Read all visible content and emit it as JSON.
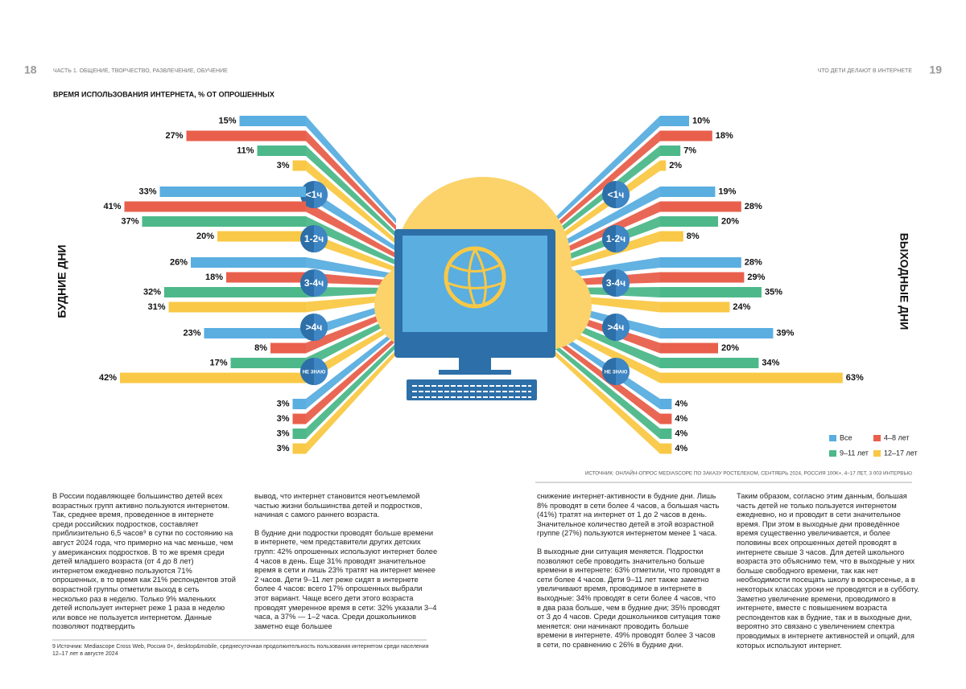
{
  "header": {
    "left_page": "18",
    "left_section": "ЧАСТЬ 1. ОБЩЕНИЕ, ТВОРЧЕСТВО, РАЗВЛЕЧЕНИЕ, ОБУЧЕНИЕ",
    "right_section": "ЧТО ДЕТИ ДЕЛАЮТ В ИНТЕРНЕТЕ",
    "right_page": "19"
  },
  "chart_data": {
    "type": "bar",
    "title": "ВРЕМЯ ИСПОЛЬЗОВАНИЯ ИНТЕРНЕТА, % ОТ ОПРОШЕННЫХ",
    "categories": [
      "<1ч",
      "1-2ч",
      "3-4ч",
      ">4ч",
      "НЕ ЗНАЮ"
    ],
    "series": [
      {
        "name": "Все",
        "color": "#5aaee0"
      },
      {
        "name": "4–8 лет",
        "color": "#e8604c"
      },
      {
        "name": "9–11 лет",
        "color": "#4db88a"
      },
      {
        "name": "12–17 лет",
        "color": "#f9c846"
      }
    ],
    "panels": [
      {
        "title": "БУДНИЕ ДНИ",
        "series": [
          {
            "values": [
              15,
              33,
              26,
              23,
              3
            ],
            "value_labels": [
              "15%",
              "33%",
              "26%",
              "23%",
              "3%"
            ]
          },
          {
            "values": [
              27,
              41,
              18,
              8,
              3
            ],
            "value_labels": [
              "27%",
              "41%",
              "18%",
              "8%",
              "3%"
            ]
          },
          {
            "values": [
              11,
              37,
              32,
              17,
              3
            ],
            "value_labels": [
              "11%",
              "37%",
              "32%",
              "17%",
              "3%"
            ]
          },
          {
            "values": [
              3,
              20,
              31,
              42,
              3
            ],
            "value_labels": [
              "3%",
              "20%",
              "31%",
              "42%",
              "3%"
            ]
          }
        ]
      },
      {
        "title": "ВЫХОДНЫЕ ДНИ",
        "series": [
          {
            "values": [
              10,
              19,
              28,
              39,
              4
            ],
            "value_labels": [
              "10%",
              "19%",
              "28%",
              "39%",
              "4%"
            ]
          },
          {
            "values": [
              18,
              28,
              29,
              20,
              4
            ],
            "value_labels": [
              "18%",
              "28%",
              "29%",
              "20%",
              "4%"
            ]
          },
          {
            "values": [
              7,
              20,
              35,
              34,
              4
            ],
            "value_labels": [
              "7%",
              "20%",
              "35%",
              "34%",
              "4%"
            ]
          },
          {
            "values": [
              2,
              8,
              24,
              63,
              4
            ],
            "value_labels": [
              "2%",
              "8%",
              "24%",
              "63%",
              "4%"
            ]
          }
        ]
      }
    ],
    "source": "ИСТОЧНИК: ОНЛАЙН-ОПРОС MEDIASCOPE ПО ЗАКАЗУ РОСТЕЛЕКОМ, СЕНТЯБРЬ 2024, РОССИЯ 100К+, 4–17 ЛЕТ, 3 003 ИНТЕРВЬЮ"
  },
  "columns": [
    [
      "В России подавляющее большинство детей всех возрастных групп активно пользуются интернетом. Так, среднее время, проведенное в интернете среди российских подростков, составляет приблизительно 6,5 часов⁹ в сутки по состоянию на август 2024 года, что примерно на час меньше, чем у американских подростков. В то же время среди детей младшего возраста (от 4 до 8 лет) интернетом ежедневно пользуются 71% опрошенных, в то время как 21% респондентов этой возрастной группы отметили выход в сеть несколько раз в неделю. Только 9% маленьких детей использует интернет реже 1 раза в неделю или вовсе не пользуется интернетом. Данные позволяют подтвердить"
    ],
    [
      "вывод, что интернет становится неотъемлемой частью жизни большинства детей и подростков, начиная с самого раннего возраста.",
      "В будние дни подростки проводят больше времени в интернете, чем представители других детских групп: 42% опрошенных используют интернет более 4 часов в день. Еще 31% проводят значительное время в сети и лишь 23% тратят на интернет менее 2 часов. Дети 9–11 лет реже сидят в интернете более 4 часов: всего 17% опрошенных выбрали этот вариант. Чаще всего дети этого возраста проводят умеренное время в сети: 32% указали 3–4 часа, а 37% — 1–2 часа. Среди дошкольников заметно еще большее"
    ],
    [
      "снижение интернет-активности в будние дни. Лишь 8% проводят в сети более 4 часов, а большая часть (41%) тратят на интернет от 1 до 2 часов в день. Значительное количество детей в этой возрастной группе (27%) пользуются интернетом менее 1 часа.",
      "В выходные дни ситуация меняется. Подростки позволяют себе проводить значительно больше времени в интернете: 63% отметили, что проводят в сети более 4 часов. Дети 9–11 лет также заметно увеличивают время, проводимое в интернете в выходные: 34% проводят в сети более 4 часов, что в два раза больше, чем в будние дни; 35% проводят от 3 до 4 часов. Среди дошкольников ситуация тоже меняется: они начинают проводить больше времени в интернете. 49% проводят более 3 часов в сети, по сравнению с 26% в будние дни."
    ],
    [
      "Таким образом, согласно этим данным, большая часть детей не только пользуется интернетом ежедневно, но и проводит в сети значительное время. При этом в выходные дни проведённое время существенно увеличивается, и более половины всех опрошенных детей проводят в интернете свыше 3 часов. Для детей школьного возраста это объяснимо тем, что в выходные у них больше свободного времени, так как нет необходимости посещать школу в воскресенье, а в некоторых классах уроки не проводятся и в субботу. Заметно увеличение времени, проводимого в интернете, вместе с повышением возраста респондентов как в будние, так и в выходные дни, вероятно это связано с увеличением спектра проводимых в интернете активностей и опций, для которых используют интернет."
    ]
  ],
  "footnote": "9 Источник: Mediascope Cross Web, Россия 0+, desktop&mobile, среднесуточная продолжительность пользования интернетом среди населения 12–17 лет в августе 2024"
}
